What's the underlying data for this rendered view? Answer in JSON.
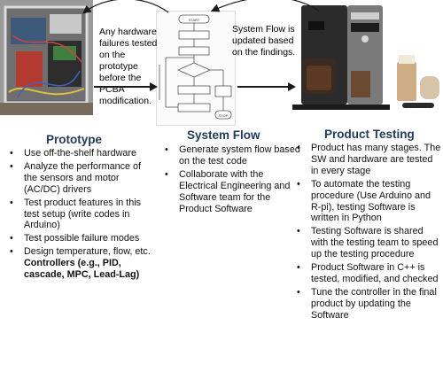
{
  "notes": {
    "hardware_failures": "Any hardware failures tested on the prototype before the PCBA modification.",
    "system_flow_update": "System Flow is updated based on the findings."
  },
  "flowchart": {
    "start": "START",
    "end": "STOP"
  },
  "columns": {
    "prototype": {
      "title": "Prototype",
      "items": [
        "Use off-the-shelf hardware",
        "Analyze the performance of the sensors and motor (AC/DC) drivers",
        "Test product features in this test setup (write codes in Arduino)",
        "Test possible failure modes"
      ],
      "last_item_prefix": "Design temperature, flow, etc. ",
      "last_item_bold": "Controllers (e.g., PID, cascade, MPC, Lead-Lag)"
    },
    "system_flow": {
      "title": "System Flow",
      "items": [
        "Generate system flow based on the test code",
        "Collaborate with the Electrical Engineering and Software team for the Product Software"
      ]
    },
    "product_testing": {
      "title": "Product Testing",
      "items": [
        "Product has many stages. The SW and hardware are tested in every stage",
        "To automate the testing procedure (Use Arduino and R-pi), testing Software is written in Python",
        "Testing Software is shared with the testing team to speed up the testing procedure",
        "Product Software in C++ is tested, modified, and checked",
        "Tune the controller in the final product by updating the Software"
      ]
    }
  },
  "colors": {
    "heading": "#1f3a5c",
    "arrow": "#1a1a1a"
  }
}
